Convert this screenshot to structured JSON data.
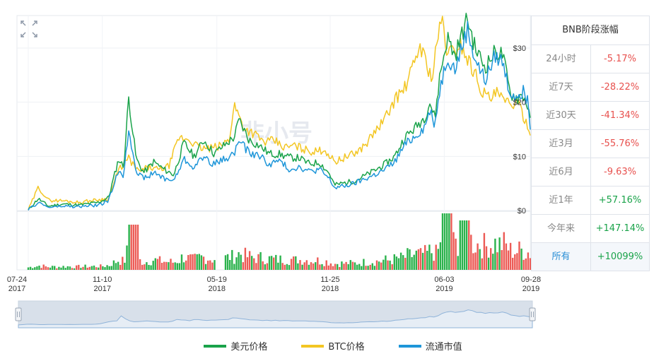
{
  "side_panel": {
    "title": "BNB阶段涨幅",
    "rows": [
      {
        "label": "24小时",
        "value": "-5.17%",
        "sign": "neg"
      },
      {
        "label": "近7天",
        "value": "-28.22%",
        "sign": "neg"
      },
      {
        "label": "近30天",
        "value": "-41.34%",
        "sign": "neg"
      },
      {
        "label": "近3月",
        "value": "-55.76%",
        "sign": "neg"
      },
      {
        "label": "近6月",
        "value": "-9.63%",
        "sign": "neg"
      },
      {
        "label": "近1年",
        "value": "+57.16%",
        "sign": "pos"
      },
      {
        "label": "今年来",
        "value": "+147.14%",
        "sign": "pos"
      },
      {
        "label": "所有",
        "value": "+10099%",
        "sign": "pos",
        "active": true
      }
    ]
  },
  "watermark": "非小号",
  "colors": {
    "usd": "#1aa34a",
    "btc": "#f3c623",
    "mcap": "#1e96d9",
    "vol_up": "#2bb24c",
    "vol_down": "#ec5b56",
    "nav_fill": "#d8e0ea",
    "nav_line": "#8fb3d9"
  },
  "icons": {
    "expand": "expand-arrows-icon",
    "nav_handle": "navigator-handle-icon"
  },
  "chart_data": {
    "type": "line",
    "ylabels": [
      "$30",
      "$20",
      "$10",
      "$0"
    ],
    "yticks": [
      30,
      20,
      10,
      0
    ],
    "ylim": [
      0,
      36
    ],
    "x_ticks": [
      {
        "line1": "07-24",
        "line2": "2017"
      },
      {
        "line1": "11-10",
        "line2": "2017"
      },
      {
        "line1": "05-19",
        "line2": "2018"
      },
      {
        "line1": "11-25",
        "line2": "2018"
      },
      {
        "line1": "06-03",
        "line2": "2019"
      },
      {
        "line1": "09-28",
        "line2": "2019"
      }
    ],
    "x_tick_pos": [
      0,
      0.1475,
      0.3757,
      0.6014,
      0.8288,
      1.0
    ],
    "series": [
      {
        "name": "美元价格",
        "key": "usd",
        "points": [
          [
            0,
            0.1
          ],
          [
            0.02,
            2.2
          ],
          [
            0.04,
            0.8
          ],
          [
            0.07,
            1.2
          ],
          [
            0.1,
            1.0
          ],
          [
            0.14,
            1.5
          ],
          [
            0.16,
            2.4
          ],
          [
            0.18,
            9.5
          ],
          [
            0.19,
            8.0
          ],
          [
            0.2,
            20.8
          ],
          [
            0.215,
            9.5
          ],
          [
            0.23,
            7.0
          ],
          [
            0.25,
            9.0
          ],
          [
            0.27,
            7.6
          ],
          [
            0.29,
            6.6
          ],
          [
            0.31,
            12.5
          ],
          [
            0.33,
            10.0
          ],
          [
            0.35,
            13.0
          ],
          [
            0.37,
            10.5
          ],
          [
            0.39,
            12.0
          ],
          [
            0.41,
            13.5
          ],
          [
            0.42,
            16.7
          ],
          [
            0.44,
            13.0
          ],
          [
            0.46,
            12.0
          ],
          [
            0.48,
            10.5
          ],
          [
            0.5,
            10.4
          ],
          [
            0.52,
            9.8
          ],
          [
            0.54,
            9.7
          ],
          [
            0.56,
            8.6
          ],
          [
            0.58,
            8.9
          ],
          [
            0.6,
            6.8
          ],
          [
            0.61,
            4.7
          ],
          [
            0.63,
            5.1
          ],
          [
            0.65,
            5.5
          ],
          [
            0.67,
            6.4
          ],
          [
            0.69,
            7.4
          ],
          [
            0.71,
            8.5
          ],
          [
            0.73,
            10.0
          ],
          [
            0.75,
            13.5
          ],
          [
            0.77,
            15.2
          ],
          [
            0.79,
            17.3
          ],
          [
            0.8,
            20.0
          ],
          [
            0.81,
            17.0
          ],
          [
            0.82,
            25.0
          ],
          [
            0.835,
            32.0
          ],
          [
            0.85,
            28.5
          ],
          [
            0.86,
            31.5
          ],
          [
            0.875,
            35.5
          ],
          [
            0.89,
            30.0
          ],
          [
            0.91,
            26.5
          ],
          [
            0.93,
            29.3
          ],
          [
            0.945,
            28.8
          ],
          [
            0.96,
            21.6
          ],
          [
            0.975,
            20.8
          ],
          [
            0.985,
            21.4
          ],
          [
            0.995,
            19.3
          ],
          [
            1.0,
            16.2
          ]
        ]
      },
      {
        "name": "BTC价格",
        "key": "btc",
        "points": [
          [
            0,
            0.1
          ],
          [
            0.02,
            4.3
          ],
          [
            0.04,
            1.9
          ],
          [
            0.07,
            1.8
          ],
          [
            0.1,
            1.5
          ],
          [
            0.14,
            2.0
          ],
          [
            0.16,
            2.2
          ],
          [
            0.18,
            7.5
          ],
          [
            0.2,
            9.6
          ],
          [
            0.22,
            7.1
          ],
          [
            0.24,
            8.0
          ],
          [
            0.26,
            7.5
          ],
          [
            0.28,
            8.2
          ],
          [
            0.3,
            13.4
          ],
          [
            0.32,
            13.2
          ],
          [
            0.34,
            11.6
          ],
          [
            0.36,
            11.4
          ],
          [
            0.38,
            11.8
          ],
          [
            0.4,
            13.0
          ],
          [
            0.41,
            19.6
          ],
          [
            0.43,
            15.2
          ],
          [
            0.45,
            14.2
          ],
          [
            0.47,
            12.6
          ],
          [
            0.49,
            12.9
          ],
          [
            0.51,
            11.6
          ],
          [
            0.53,
            12.0
          ],
          [
            0.55,
            11.3
          ],
          [
            0.57,
            10.8
          ],
          [
            0.59,
            11.3
          ],
          [
            0.61,
            9.0
          ],
          [
            0.63,
            9.8
          ],
          [
            0.65,
            10.5
          ],
          [
            0.67,
            12.0
          ],
          [
            0.69,
            14.5
          ],
          [
            0.71,
            16.8
          ],
          [
            0.73,
            20.5
          ],
          [
            0.75,
            22.6
          ],
          [
            0.77,
            27.3
          ],
          [
            0.78,
            30.8
          ],
          [
            0.79,
            28.0
          ],
          [
            0.805,
            24.3
          ],
          [
            0.815,
            31.8
          ],
          [
            0.825,
            35.0
          ],
          [
            0.835,
            29.0
          ],
          [
            0.85,
            29.5
          ],
          [
            0.86,
            31.0
          ],
          [
            0.875,
            28.0
          ],
          [
            0.89,
            25.3
          ],
          [
            0.905,
            21.9
          ],
          [
            0.92,
            20.6
          ],
          [
            0.935,
            21.7
          ],
          [
            0.95,
            19.8
          ],
          [
            0.965,
            20.0
          ],
          [
            0.98,
            18.9
          ],
          [
            0.99,
            16.7
          ],
          [
            1.0,
            14.8
          ]
        ]
      },
      {
        "name": "流通市值",
        "key": "mcap",
        "points": [
          [
            0,
            0.1
          ],
          [
            0.02,
            1.5
          ],
          [
            0.04,
            0.6
          ],
          [
            0.07,
            0.8
          ],
          [
            0.1,
            0.7
          ],
          [
            0.14,
            1.0
          ],
          [
            0.16,
            1.8
          ],
          [
            0.18,
            7.5
          ],
          [
            0.19,
            6.5
          ],
          [
            0.2,
            15.0
          ],
          [
            0.215,
            7.5
          ],
          [
            0.23,
            5.8
          ],
          [
            0.25,
            7.0
          ],
          [
            0.27,
            6.0
          ],
          [
            0.29,
            5.5
          ],
          [
            0.31,
            9.5
          ],
          [
            0.33,
            8.0
          ],
          [
            0.35,
            10.0
          ],
          [
            0.37,
            8.5
          ],
          [
            0.39,
            9.5
          ],
          [
            0.41,
            10.5
          ],
          [
            0.42,
            13.0
          ],
          [
            0.44,
            10.6
          ],
          [
            0.46,
            10.2
          ],
          [
            0.48,
            8.5
          ],
          [
            0.5,
            9.2
          ],
          [
            0.52,
            7.6
          ],
          [
            0.54,
            8.1
          ],
          [
            0.56,
            7.2
          ],
          [
            0.58,
            7.6
          ],
          [
            0.6,
            5.8
          ],
          [
            0.61,
            4.2
          ],
          [
            0.63,
            4.5
          ],
          [
            0.65,
            5.0
          ],
          [
            0.67,
            5.8
          ],
          [
            0.69,
            6.6
          ],
          [
            0.71,
            7.5
          ],
          [
            0.73,
            9.0
          ],
          [
            0.75,
            12.1
          ],
          [
            0.77,
            13.7
          ],
          [
            0.79,
            15.5
          ],
          [
            0.8,
            18.5
          ],
          [
            0.81,
            16.0
          ],
          [
            0.82,
            22.5
          ],
          [
            0.835,
            28.6
          ],
          [
            0.85,
            26.0
          ],
          [
            0.86,
            29.1
          ],
          [
            0.875,
            33.5
          ],
          [
            0.89,
            28.0
          ],
          [
            0.91,
            24.0
          ],
          [
            0.93,
            28.5
          ],
          [
            0.945,
            27.5
          ],
          [
            0.96,
            21.6
          ],
          [
            0.975,
            21.4
          ],
          [
            0.985,
            22.2
          ],
          [
            0.995,
            19.9
          ],
          [
            1.0,
            15.8
          ]
        ]
      }
    ]
  },
  "legend": {
    "usd": "美元价格",
    "btc": "BTC价格",
    "mcap": "流通市值"
  }
}
